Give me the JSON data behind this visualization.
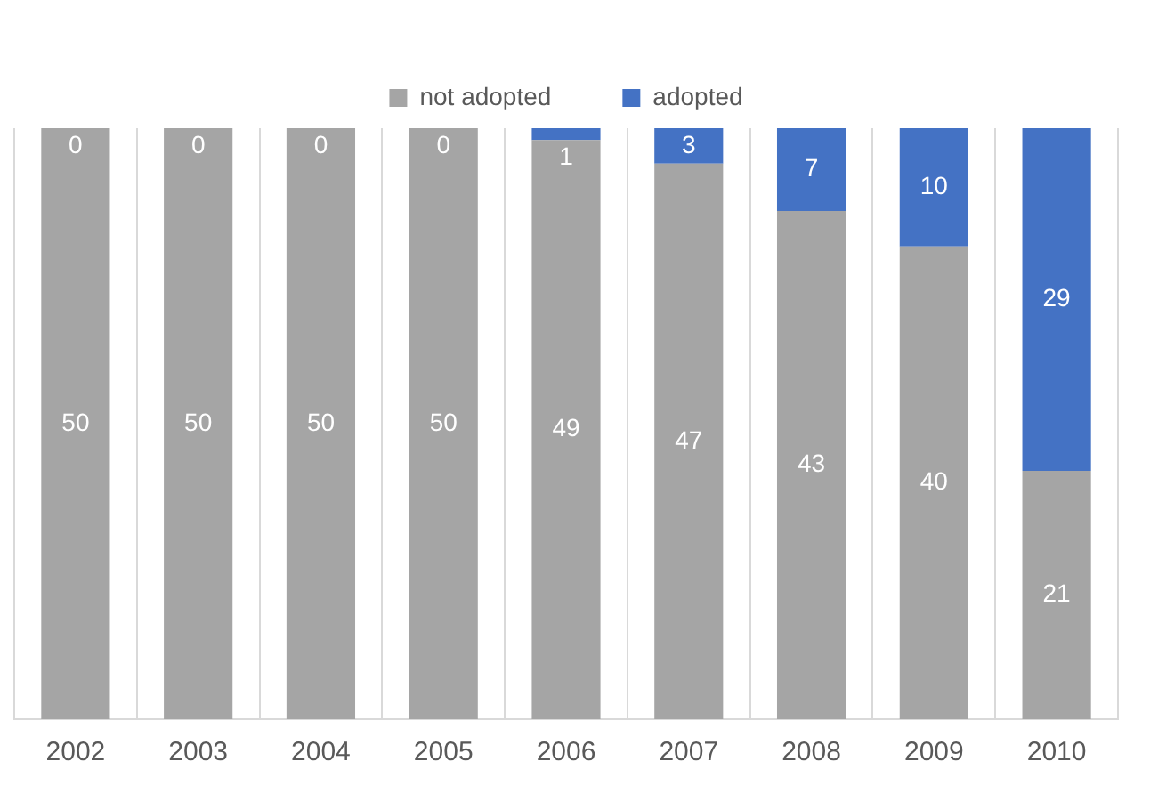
{
  "chart_data": {
    "type": "bar",
    "stacked": true,
    "categories": [
      "2002",
      "2003",
      "2004",
      "2005",
      "2006",
      "2007",
      "2008",
      "2009",
      "2010"
    ],
    "series": [
      {
        "name": "not adopted",
        "color": "#a5a5a5",
        "values": [
          50,
          50,
          50,
          50,
          49,
          47,
          43,
          40,
          21
        ]
      },
      {
        "name": "adopted",
        "color": "#4472c4",
        "values": [
          0,
          0,
          0,
          0,
          1,
          3,
          7,
          10,
          29
        ]
      }
    ],
    "data_labels": true,
    "grid": "x",
    "legend": "top"
  }
}
